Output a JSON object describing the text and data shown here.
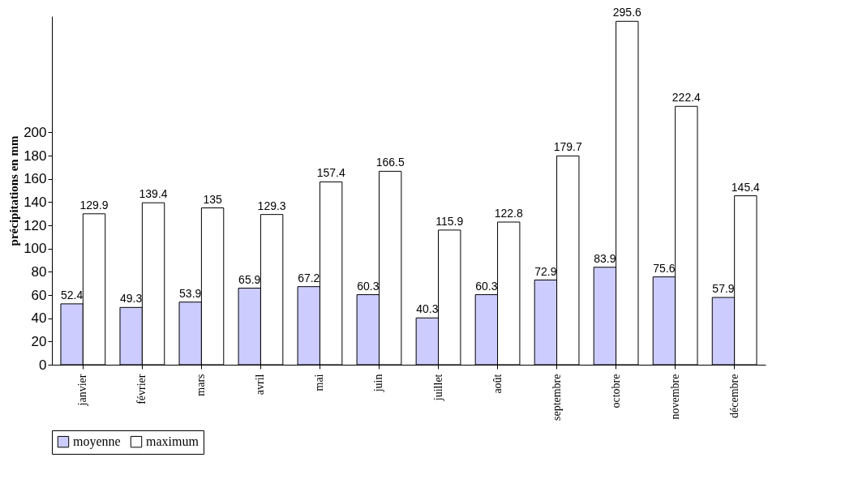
{
  "chart_data": {
    "type": "bar",
    "ylabel": "précipitations en mm",
    "categories": [
      "janvier",
      "février",
      "mars",
      "avril",
      "mai",
      "juin",
      "juillet",
      "août",
      "septembre",
      "octobre",
      "novembre",
      "décembre"
    ],
    "series": [
      {
        "name": "moyenne",
        "color": "#ccccff",
        "values": [
          52.4,
          49.3,
          53.9,
          65.9,
          67.2,
          60.3,
          40.3,
          60.3,
          72.9,
          83.9,
          75.6,
          57.9
        ]
      },
      {
        "name": "maximum",
        "color": "#ffffff",
        "values": [
          129.9,
          139.4,
          135,
          129.3,
          157.4,
          166.5,
          115.9,
          122.8,
          179.7,
          295.6,
          222.4,
          145.4
        ]
      }
    ],
    "ylim": [
      0,
      300
    ],
    "yticks": [
      0,
      20,
      40,
      60,
      80,
      100,
      120,
      140,
      160,
      180,
      200
    ],
    "data_labels": true,
    "legend": "bottom",
    "grid": false
  }
}
